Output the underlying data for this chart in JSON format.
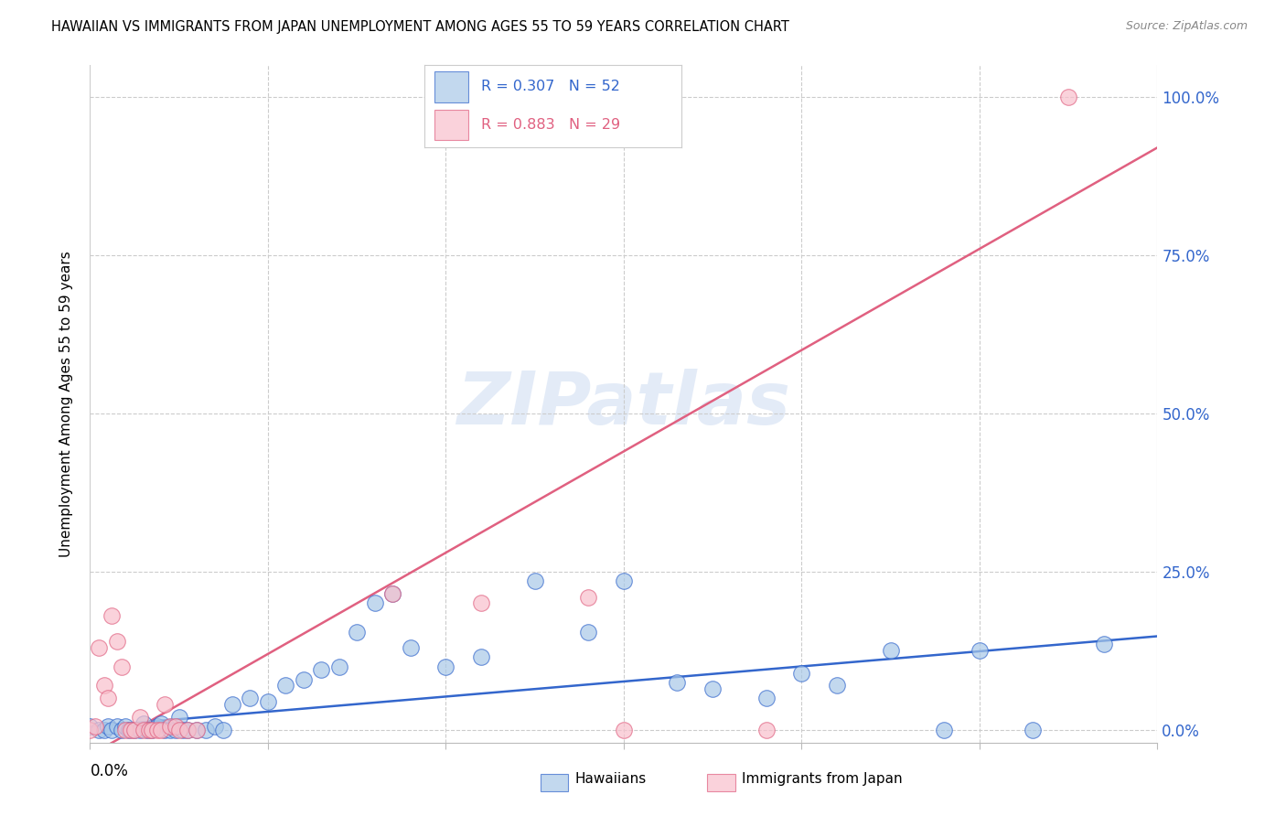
{
  "title": "HAWAIIAN VS IMMIGRANTS FROM JAPAN UNEMPLOYMENT AMONG AGES 55 TO 59 YEARS CORRELATION CHART",
  "source": "Source: ZipAtlas.com",
  "ylabel": "Unemployment Among Ages 55 to 59 years",
  "yticks": [
    0.0,
    0.25,
    0.5,
    0.75,
    1.0
  ],
  "ytick_labels": [
    "0.0%",
    "25.0%",
    "50.0%",
    "75.0%",
    "100.0%"
  ],
  "xlim": [
    0.0,
    0.6
  ],
  "ylim": [
    -0.02,
    1.05
  ],
  "hawaiian_R": "0.307",
  "hawaiian_N": "52",
  "japan_R": "0.883",
  "japan_N": "29",
  "watermark": "ZIPatlas",
  "hawaiian_color": "#a8c8e8",
  "hawaii_line_color": "#3366cc",
  "japan_color": "#f8c0cc",
  "japan_line_color": "#e06080",
  "hawaii_trend_x": [
    0.0,
    0.6
  ],
  "hawaii_trend_y": [
    0.005,
    0.148
  ],
  "japan_trend_x": [
    0.0,
    0.6
  ],
  "japan_trend_y": [
    -0.04,
    0.92
  ],
  "hawaiian_x": [
    0.0,
    0.005,
    0.008,
    0.01,
    0.012,
    0.015,
    0.018,
    0.02,
    0.022,
    0.025,
    0.028,
    0.03,
    0.032,
    0.035,
    0.038,
    0.04,
    0.042,
    0.045,
    0.048,
    0.05,
    0.052,
    0.055,
    0.06,
    0.065,
    0.07,
    0.075,
    0.08,
    0.09,
    0.1,
    0.11,
    0.12,
    0.13,
    0.14,
    0.15,
    0.16,
    0.17,
    0.18,
    0.2,
    0.22,
    0.25,
    0.28,
    0.3,
    0.33,
    0.35,
    0.38,
    0.4,
    0.42,
    0.45,
    0.48,
    0.5,
    0.53,
    0.57
  ],
  "hawaiian_y": [
    0.005,
    0.0,
    0.0,
    0.005,
    0.0,
    0.005,
    0.0,
    0.005,
    0.0,
    0.0,
    0.0,
    0.01,
    0.0,
    0.0,
    0.005,
    0.01,
    0.0,
    0.0,
    0.0,
    0.02,
    0.0,
    0.0,
    0.0,
    0.0,
    0.005,
    0.0,
    0.04,
    0.05,
    0.045,
    0.07,
    0.08,
    0.095,
    0.1,
    0.155,
    0.2,
    0.215,
    0.13,
    0.1,
    0.115,
    0.235,
    0.155,
    0.235,
    0.075,
    0.065,
    0.05,
    0.09,
    0.07,
    0.125,
    0.0,
    0.125,
    0.0,
    0.135
  ],
  "japan_x": [
    0.0,
    0.003,
    0.005,
    0.008,
    0.01,
    0.012,
    0.015,
    0.018,
    0.02,
    0.023,
    0.025,
    0.028,
    0.03,
    0.033,
    0.035,
    0.038,
    0.04,
    0.042,
    0.045,
    0.048,
    0.05,
    0.055,
    0.06,
    0.17,
    0.22,
    0.28,
    0.3,
    0.38,
    0.55
  ],
  "japan_y": [
    0.0,
    0.005,
    0.13,
    0.07,
    0.05,
    0.18,
    0.14,
    0.1,
    0.0,
    0.0,
    0.0,
    0.02,
    0.0,
    0.0,
    0.0,
    0.0,
    0.0,
    0.04,
    0.005,
    0.005,
    0.0,
    0.0,
    0.0,
    0.215,
    0.2,
    0.21,
    0.0,
    0.0,
    1.0
  ]
}
